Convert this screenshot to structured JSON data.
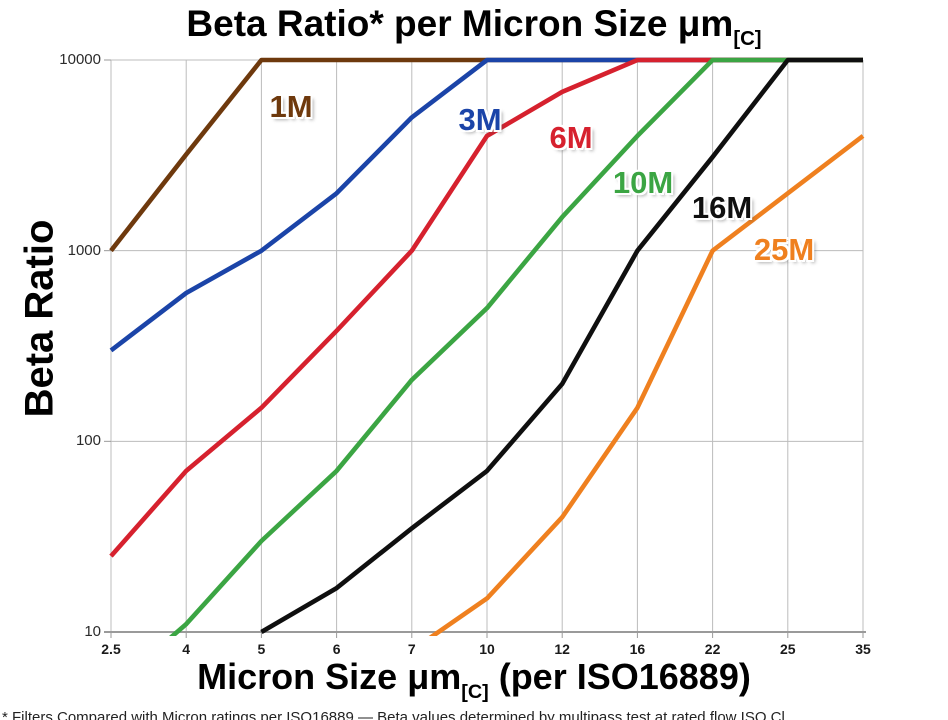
{
  "title": {
    "text": "Beta Ratio* per Micron Size μm",
    "subscript": "[C]"
  },
  "y_axis": {
    "title": "Beta Ratio",
    "tick_labels": [
      "10000",
      "1000",
      "100",
      "10"
    ]
  },
  "x_axis": {
    "title_prefix": "Micron Size μm",
    "title_subscript": "[C]",
    "title_suffix": " (per ISO16889)",
    "tick_labels": [
      "2.5",
      "4",
      "5",
      "6",
      "7",
      "10",
      "12",
      "16",
      "22",
      "25",
      "35"
    ]
  },
  "footnote": "* Filters Compared with Micron ratings per ISO16889 — Beta values determined by multipass test at rated flow ISO Cl",
  "colors": {
    "grid": "#bcbcbc",
    "axis": "#9a9a9a",
    "tick_text": "#1a1a1a",
    "title_text": "#000000"
  },
  "chart_data": {
    "type": "line",
    "title": "Beta Ratio* per Micron Size μm[C]",
    "xlabel": "Micron Size μm[C] (per ISO16889)",
    "ylabel": "Beta Ratio",
    "x_scale": "category",
    "y_scale": "log",
    "ylim": [
      10,
      10000
    ],
    "grid": true,
    "legend_position": "inline-labels",
    "categories": [
      2.5,
      4,
      5,
      6,
      7,
      10,
      12,
      16,
      22,
      25,
      35
    ],
    "series": [
      {
        "name": "1M",
        "color": "#6E390D",
        "values": [
          1000,
          3200,
          10000,
          10000,
          10000,
          10000,
          10000,
          10000,
          10000,
          10000,
          10000
        ]
      },
      {
        "name": "3M",
        "color": "#1B44A8",
        "values": [
          300,
          600,
          1000,
          2000,
          5000,
          10000,
          10000,
          10000,
          10000,
          10000,
          10000
        ]
      },
      {
        "name": "6M",
        "color": "#D6212E",
        "values": [
          25,
          70,
          150,
          380,
          1000,
          4000,
          6800,
          10000,
          10000,
          10000,
          10000
        ]
      },
      {
        "name": "10M",
        "color": "#3BA543",
        "values": [
          5,
          11,
          30,
          70,
          210,
          500,
          1500,
          4000,
          10000,
          10000,
          10000
        ]
      },
      {
        "name": "16M",
        "color": "#0f0f0f",
        "values": [
          null,
          null,
          10,
          17,
          35,
          70,
          200,
          1000,
          3100,
          10000,
          10000
        ]
      },
      {
        "name": "25M",
        "color": "#EF801F",
        "values": [
          null,
          null,
          null,
          null,
          8,
          15,
          40,
          150,
          1000,
          2000,
          4000
        ]
      }
    ]
  }
}
